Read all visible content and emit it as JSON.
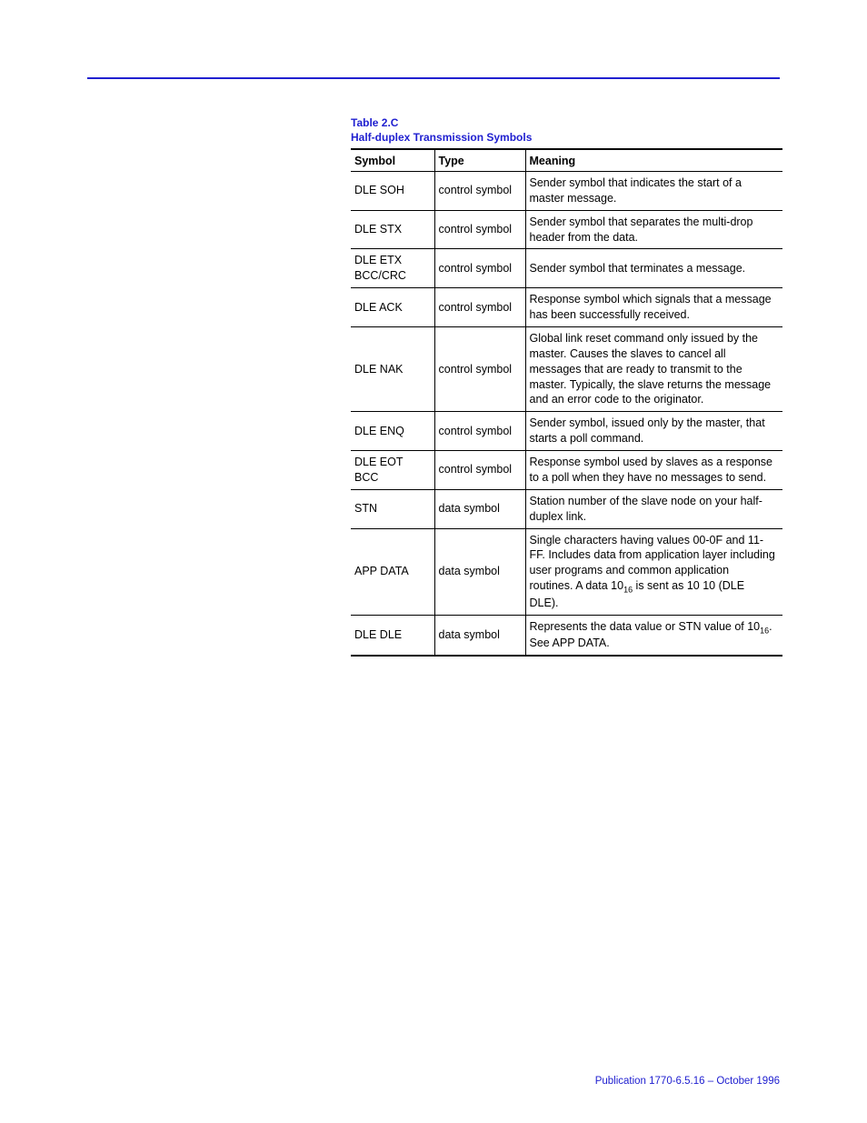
{
  "caption": {
    "line1": "Table 2.C",
    "line2": "Half-duplex Transmission Symbols"
  },
  "table": {
    "columns": [
      "Symbol",
      "Type",
      "Meaning"
    ],
    "rows": [
      {
        "symbol": "DLE SOH",
        "type": "control symbol",
        "meaning": "Sender symbol that indicates the start of a master message."
      },
      {
        "symbol": "DLE STX",
        "type": "control symbol",
        "meaning": "Sender symbol that separates the multi-drop header from the data."
      },
      {
        "symbol": "DLE ETX BCC/CRC",
        "type": "control symbol",
        "meaning": "Sender symbol that terminates a message."
      },
      {
        "symbol": "DLE ACK",
        "type": "control symbol",
        "meaning": "Response symbol which signals that a message has been successfully received."
      },
      {
        "symbol": "DLE NAK",
        "type": "control symbol",
        "meaning": "Global link reset command only issued by the master. Causes the slaves to cancel all messages that are ready to transmit to the master.  Typically, the slave returns the message and an error code to the originator."
      },
      {
        "symbol": "DLE ENQ",
        "type": "control symbol",
        "meaning": "Sender symbol, issued only  by the master, that starts a poll command."
      },
      {
        "symbol": "DLE EOT BCC",
        "type": "control symbol",
        "meaning": "Response symbol used by slaves as a response to a poll when they have no messages to send."
      },
      {
        "symbol": "STN",
        "type": "data symbol",
        "meaning": "Station number of the slave node on your half-duplex link."
      },
      {
        "symbol": "APP DATA",
        "type": "data symbol",
        "meaning_pre": "Single characters having values 00-0F and 11-FF.  Includes data from application layer including user programs and common application routines.  A data 10",
        "meaning_sub": "16",
        "meaning_post": " is sent as 10 10 (DLE DLE)."
      },
      {
        "symbol": "DLE DLE",
        "type": "data symbol",
        "meaning_pre": "Represents the data value or STN value of 10",
        "meaning_sub": "16",
        "meaning_post": ".  See APP DATA."
      }
    ]
  },
  "footer": "Publication 1770-6.5.16 – October 1996",
  "colors": {
    "accent": "#2020d0",
    "text": "#000000",
    "background": "#ffffff"
  }
}
